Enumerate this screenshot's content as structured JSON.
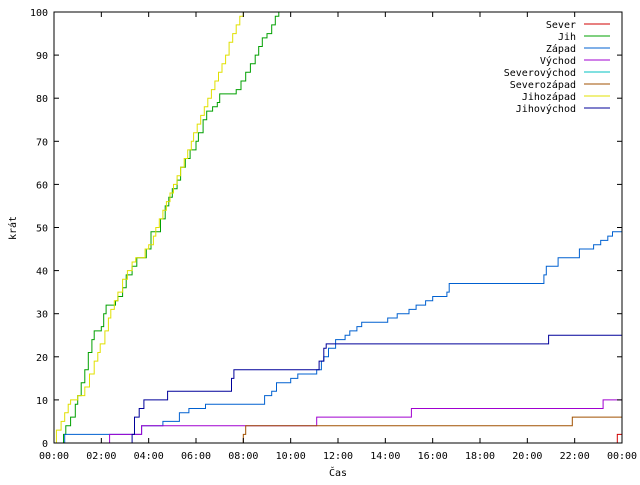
{
  "chart_data": {
    "type": "line",
    "title": "",
    "xlabel": "Čas",
    "ylabel": "krát",
    "xlim": [
      0,
      24
    ],
    "ylim": [
      0,
      100
    ],
    "x_ticks": [
      "00:00",
      "02:00",
      "04:00",
      "06:00",
      "08:00",
      "10:00",
      "12:00",
      "14:00",
      "16:00",
      "18:00",
      "20:00",
      "22:00",
      "00:00"
    ],
    "y_ticks": [
      "0",
      "10",
      "20",
      "30",
      "40",
      "50",
      "60",
      "70",
      "80",
      "90",
      "100"
    ],
    "grid": false,
    "legend_position": "top-right",
    "series": [
      {
        "name": "Sever",
        "color": "#d00000",
        "step": true,
        "points": [
          [
            0,
            0
          ],
          [
            23.8,
            0
          ],
          [
            23.8,
            2
          ],
          [
            24,
            2
          ]
        ]
      },
      {
        "name": "Jih",
        "color": "#00a000",
        "step": true,
        "points": [
          [
            0.3,
            0
          ],
          [
            0.4,
            2
          ],
          [
            0.5,
            4
          ],
          [
            0.7,
            6
          ],
          [
            0.9,
            9
          ],
          [
            1.0,
            11
          ],
          [
            1.15,
            14
          ],
          [
            1.3,
            17
          ],
          [
            1.45,
            21
          ],
          [
            1.6,
            24
          ],
          [
            1.7,
            26
          ],
          [
            2.0,
            27
          ],
          [
            2.1,
            30
          ],
          [
            2.2,
            32
          ],
          [
            2.6,
            33
          ],
          [
            2.7,
            34
          ],
          [
            2.9,
            36
          ],
          [
            3.05,
            39
          ],
          [
            3.3,
            41
          ],
          [
            3.5,
            43
          ],
          [
            3.8,
            43
          ],
          [
            3.9,
            45
          ],
          [
            4.1,
            49
          ],
          [
            4.4,
            49
          ],
          [
            4.5,
            52
          ],
          [
            4.7,
            55
          ],
          [
            4.85,
            57
          ],
          [
            5.0,
            59
          ],
          [
            5.2,
            61
          ],
          [
            5.35,
            64
          ],
          [
            5.55,
            66
          ],
          [
            5.75,
            68
          ],
          [
            6.0,
            70
          ],
          [
            6.1,
            72
          ],
          [
            6.3,
            75
          ],
          [
            6.45,
            77
          ],
          [
            6.7,
            78
          ],
          [
            6.9,
            79
          ],
          [
            7.0,
            81
          ],
          [
            7.5,
            81
          ],
          [
            7.7,
            82
          ],
          [
            7.9,
            84
          ],
          [
            8.1,
            86
          ],
          [
            8.3,
            88
          ],
          [
            8.5,
            90
          ],
          [
            8.65,
            92
          ],
          [
            8.8,
            94
          ],
          [
            9.0,
            95
          ],
          [
            9.2,
            97
          ],
          [
            9.35,
            99
          ],
          [
            9.5,
            100
          ]
        ]
      },
      {
        "name": "Západ",
        "color": "#0060d0",
        "step": true,
        "points": [
          [
            0.4,
            0
          ],
          [
            0.45,
            2
          ],
          [
            3.5,
            2
          ],
          [
            3.7,
            4
          ],
          [
            4.4,
            4
          ],
          [
            4.6,
            5
          ],
          [
            5.2,
            5
          ],
          [
            5.3,
            7
          ],
          [
            5.6,
            7
          ],
          [
            5.7,
            8
          ],
          [
            6.3,
            8
          ],
          [
            6.4,
            9
          ],
          [
            8.8,
            9
          ],
          [
            8.9,
            11
          ],
          [
            9.2,
            12
          ],
          [
            9.4,
            14
          ],
          [
            9.9,
            14
          ],
          [
            10.0,
            15
          ],
          [
            10.3,
            16
          ],
          [
            11.0,
            16
          ],
          [
            11.1,
            17
          ],
          [
            11.3,
            19
          ],
          [
            11.4,
            20
          ],
          [
            11.6,
            22
          ],
          [
            11.8,
            22
          ],
          [
            11.9,
            24
          ],
          [
            12.3,
            25
          ],
          [
            12.5,
            26
          ],
          [
            12.8,
            27
          ],
          [
            13.0,
            28
          ],
          [
            14.0,
            28
          ],
          [
            14.1,
            29
          ],
          [
            14.5,
            30
          ],
          [
            15.0,
            31
          ],
          [
            15.3,
            32
          ],
          [
            15.7,
            33
          ],
          [
            16.0,
            34
          ],
          [
            16.6,
            35
          ],
          [
            16.7,
            37
          ],
          [
            20.5,
            37
          ],
          [
            20.7,
            39
          ],
          [
            20.8,
            41
          ],
          [
            21.3,
            43
          ],
          [
            22.1,
            43
          ],
          [
            22.2,
            45
          ],
          [
            22.8,
            46
          ],
          [
            23.1,
            47
          ],
          [
            23.4,
            48
          ],
          [
            23.6,
            49
          ],
          [
            24.0,
            49
          ]
        ]
      },
      {
        "name": "Východ",
        "color": "#a000d0",
        "step": true,
        "points": [
          [
            2.3,
            0
          ],
          [
            2.35,
            2
          ],
          [
            3.6,
            2
          ],
          [
            3.7,
            4
          ],
          [
            7.9,
            4
          ],
          [
            8.0,
            4
          ],
          [
            11.0,
            4
          ],
          [
            11.1,
            6
          ],
          [
            15.0,
            6
          ],
          [
            15.1,
            8
          ],
          [
            23.1,
            8
          ],
          [
            23.2,
            10
          ],
          [
            24.0,
            10
          ]
        ]
      },
      {
        "name": "Severovýchod",
        "color": "#00c0c0",
        "step": true,
        "points": [
          [
            0,
            0
          ],
          [
            24,
            0
          ]
        ]
      },
      {
        "name": "Severozápad",
        "color": "#a05000",
        "step": true,
        "points": [
          [
            7.9,
            0
          ],
          [
            8.0,
            2
          ],
          [
            8.1,
            4
          ],
          [
            21.8,
            4
          ],
          [
            21.9,
            6
          ],
          [
            24.0,
            6
          ]
        ]
      },
      {
        "name": "Jihozápad",
        "color": "#e0e000",
        "step": true,
        "points": [
          [
            0,
            0
          ],
          [
            0.1,
            3
          ],
          [
            0.3,
            5
          ],
          [
            0.45,
            7
          ],
          [
            0.6,
            9
          ],
          [
            0.7,
            10
          ],
          [
            1.0,
            11
          ],
          [
            1.3,
            13
          ],
          [
            1.5,
            16
          ],
          [
            1.7,
            19
          ],
          [
            1.85,
            21
          ],
          [
            1.95,
            23
          ],
          [
            2.15,
            26
          ],
          [
            2.3,
            29
          ],
          [
            2.4,
            31
          ],
          [
            2.55,
            33
          ],
          [
            2.7,
            35
          ],
          [
            2.9,
            38
          ],
          [
            3.1,
            40
          ],
          [
            3.3,
            42
          ],
          [
            3.45,
            43
          ],
          [
            3.85,
            45
          ],
          [
            4.0,
            46
          ],
          [
            4.2,
            48
          ],
          [
            4.3,
            50
          ],
          [
            4.45,
            52
          ],
          [
            4.6,
            54
          ],
          [
            4.75,
            56
          ],
          [
            4.9,
            58
          ],
          [
            5.05,
            60
          ],
          [
            5.2,
            62
          ],
          [
            5.35,
            64
          ],
          [
            5.5,
            66
          ],
          [
            5.65,
            68
          ],
          [
            5.8,
            70
          ],
          [
            5.9,
            72
          ],
          [
            6.05,
            74
          ],
          [
            6.2,
            76
          ],
          [
            6.35,
            78
          ],
          [
            6.5,
            80
          ],
          [
            6.65,
            82
          ],
          [
            6.8,
            84
          ],
          [
            6.95,
            86
          ],
          [
            7.1,
            88
          ],
          [
            7.25,
            90
          ],
          [
            7.4,
            93
          ],
          [
            7.55,
            95
          ],
          [
            7.7,
            97
          ],
          [
            7.85,
            99
          ],
          [
            8.0,
            100
          ]
        ]
      },
      {
        "name": "Jihovýchod",
        "color": "#00009a",
        "step": true,
        "points": [
          [
            3.2,
            0
          ],
          [
            3.3,
            2
          ],
          [
            3.4,
            6
          ],
          [
            3.6,
            8
          ],
          [
            3.8,
            10
          ],
          [
            4.7,
            10
          ],
          [
            4.8,
            12
          ],
          [
            7.4,
            12
          ],
          [
            7.5,
            15
          ],
          [
            7.6,
            17
          ],
          [
            11.0,
            17
          ],
          [
            11.2,
            19
          ],
          [
            11.4,
            22
          ],
          [
            11.5,
            23
          ],
          [
            20.8,
            23
          ],
          [
            20.9,
            25
          ],
          [
            24.0,
            25
          ]
        ]
      }
    ]
  }
}
